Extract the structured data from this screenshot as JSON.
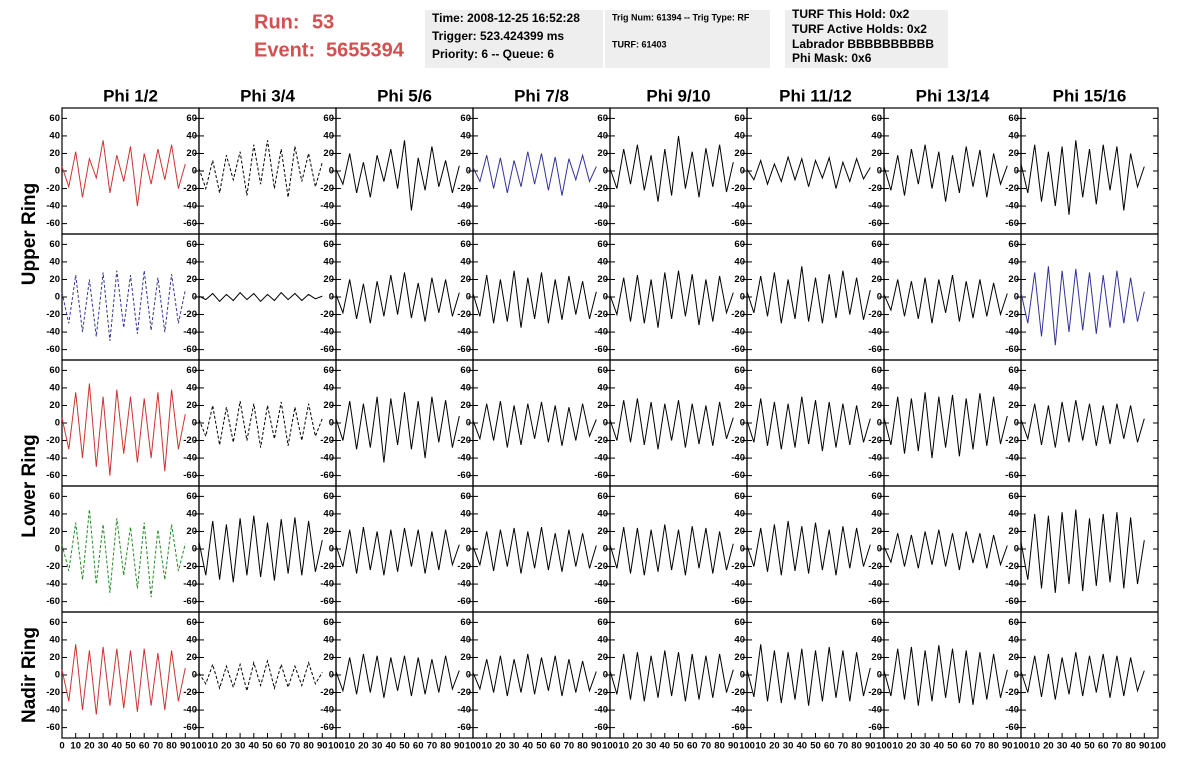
{
  "header": {
    "run_label": "Run:",
    "run": 53,
    "event_label": "Event:",
    "event": 5655394,
    "info1": [
      "Time: 2008-12-25 16:52:28",
      "Trigger: 523.424399 ms",
      "Priority: 6 -- Queue: 6"
    ],
    "info2": [
      "Trig Num: 61394 -- Trig Type: RF",
      "TURF: 61403"
    ],
    "info3": [
      "TURF This Hold: 0x2",
      "TURF Active Holds: 0x2",
      "Labrador BBBBBBBBBB",
      "Phi Mask: 0x6"
    ]
  },
  "columns": [
    "Phi 1/2",
    "Phi 3/4",
    "Phi 5/6",
    "Phi 7/8",
    "Phi 9/10",
    "Phi 11/12",
    "Phi 13/14",
    "Phi 15/16"
  ],
  "rows": [
    "Upper Ring",
    "Lower Ring",
    "Nadir Ring"
  ],
  "axes": {
    "xlim": [
      0,
      100
    ],
    "xticks": [
      0,
      10,
      20,
      30,
      40,
      50,
      60,
      70,
      80,
      90,
      100
    ],
    "ylim": [
      -65,
      65
    ],
    "yticks": [
      60,
      40,
      20,
      0,
      -20,
      -40,
      -60
    ]
  },
  "x": [
    0,
    5,
    10,
    15,
    20,
    25,
    30,
    35,
    40,
    45,
    50,
    55,
    60,
    65,
    70,
    75,
    80,
    85,
    90
  ],
  "panels": [
    [
      {
        "color": "#cc3333",
        "dashed": false,
        "values": [
          5,
          -18,
          22,
          -30,
          14,
          -8,
          35,
          -25,
          18,
          -12,
          28,
          -40,
          20,
          -15,
          25,
          -10,
          30,
          -20,
          8
        ]
      },
      {
        "color": "#000000",
        "dashed": true,
        "values": [
          3,
          -20,
          12,
          -25,
          18,
          -10,
          22,
          -28,
          30,
          -15,
          35,
          -20,
          25,
          -30,
          28,
          -12,
          20,
          -18,
          10
        ]
      },
      {
        "color": "#000000",
        "dashed": false,
        "values": [
          2,
          -15,
          20,
          -25,
          10,
          -30,
          18,
          -12,
          25,
          -20,
          35,
          -45,
          15,
          -22,
          28,
          -18,
          12,
          -25,
          6
        ]
      },
      {
        "color": "#333399",
        "dashed": false,
        "values": [
          4,
          -12,
          18,
          -20,
          15,
          -25,
          12,
          -18,
          22,
          -15,
          20,
          -22,
          16,
          -28,
          14,
          -10,
          18,
          -12,
          5
        ]
      },
      {
        "color": "#000000",
        "dashed": false,
        "values": [
          3,
          -20,
          25,
          -15,
          30,
          -22,
          18,
          -35,
          25,
          -28,
          40,
          -20,
          22,
          -30,
          26,
          -18,
          30,
          -24,
          10
        ]
      },
      {
        "color": "#000000",
        "dashed": false,
        "values": [
          2,
          -10,
          12,
          -15,
          8,
          -12,
          16,
          -10,
          14,
          -18,
          12,
          -8,
          15,
          -20,
          10,
          -12,
          14,
          -9,
          4
        ]
      },
      {
        "color": "#000000",
        "dashed": false,
        "values": [
          5,
          -22,
          18,
          -28,
          25,
          -15,
          30,
          -20,
          22,
          -35,
          18,
          -25,
          28,
          -18,
          24,
          -30,
          20,
          -15,
          6
        ]
      },
      {
        "color": "#000000",
        "dashed": false,
        "values": [
          8,
          -25,
          30,
          -35,
          22,
          -40,
          28,
          -50,
          35,
          -30,
          25,
          -38,
          30,
          -22,
          28,
          -45,
          20,
          -18,
          5
        ]
      }
    ],
    [
      {
        "color": "#333399",
        "dashed": true,
        "values": [
          5,
          -30,
          25,
          -40,
          20,
          -45,
          28,
          -50,
          30,
          -35,
          25,
          -42,
          30,
          -38,
          22,
          -40,
          26,
          -30,
          8
        ]
      },
      {
        "color": "#000000",
        "dashed": false,
        "values": [
          1,
          -3,
          4,
          -5,
          3,
          -4,
          5,
          -3,
          4,
          -5,
          3,
          -4,
          5,
          -3,
          4,
          -4,
          3,
          -2,
          1
        ]
      },
      {
        "color": "#000000",
        "dashed": false,
        "values": [
          3,
          -18,
          20,
          -25,
          15,
          -30,
          18,
          -22,
          25,
          -20,
          28,
          -24,
          16,
          -28,
          22,
          -18,
          20,
          -22,
          5
        ]
      },
      {
        "color": "#000000",
        "dashed": false,
        "values": [
          4,
          -22,
          25,
          -30,
          20,
          -28,
          30,
          -35,
          22,
          -25,
          28,
          -30,
          20,
          -26,
          24,
          -20,
          18,
          -25,
          6
        ]
      },
      {
        "color": "#000000",
        "dashed": false,
        "values": [
          2,
          -20,
          22,
          -28,
          25,
          -30,
          20,
          -35,
          28,
          -25,
          30,
          -22,
          26,
          -32,
          20,
          -28,
          24,
          -18,
          5
        ]
      },
      {
        "color": "#000000",
        "dashed": false,
        "values": [
          6,
          -18,
          24,
          -22,
          28,
          -30,
          20,
          -25,
          35,
          -28,
          22,
          -30,
          26,
          -24,
          30,
          -20,
          22,
          -26,
          8
        ]
      },
      {
        "color": "#000000",
        "dashed": false,
        "values": [
          3,
          -15,
          20,
          -22,
          18,
          -25,
          22,
          -30,
          20,
          -18,
          25,
          -28,
          18,
          -24,
          20,
          -22,
          16,
          -20,
          4
        ]
      },
      {
        "color": "#333399",
        "dashed": false,
        "values": [
          5,
          -30,
          28,
          -45,
          35,
          -55,
          30,
          -40,
          32,
          -38,
          28,
          -42,
          25,
          -35,
          30,
          -30,
          22,
          -28,
          6
        ]
      }
    ],
    [
      {
        "color": "#cc3333",
        "dashed": false,
        "values": [
          6,
          -30,
          35,
          -40,
          45,
          -50,
          30,
          -60,
          38,
          -35,
          30,
          -45,
          28,
          -40,
          35,
          -55,
          38,
          -30,
          10
        ]
      },
      {
        "color": "#000000",
        "dashed": true,
        "values": [
          4,
          -15,
          20,
          -25,
          18,
          -22,
          25,
          -20,
          22,
          -28,
          20,
          -18,
          24,
          -26,
          18,
          -20,
          22,
          -15,
          5
        ]
      },
      {
        "color": "#000000",
        "dashed": false,
        "values": [
          5,
          -20,
          25,
          -30,
          22,
          -28,
          30,
          -45,
          28,
          -25,
          35,
          -30,
          25,
          -40,
          30,
          -22,
          26,
          -28,
          8
        ]
      },
      {
        "color": "#000000",
        "dashed": false,
        "values": [
          3,
          -18,
          22,
          -20,
          25,
          -28,
          20,
          -25,
          22,
          -18,
          24,
          -22,
          20,
          -26,
          18,
          -20,
          22,
          -15,
          4
        ]
      },
      {
        "color": "#000000",
        "dashed": false,
        "values": [
          4,
          -20,
          26,
          -22,
          28,
          -25,
          24,
          -30,
          22,
          -20,
          26,
          -28,
          22,
          -24,
          20,
          -26,
          24,
          -18,
          6
        ]
      },
      {
        "color": "#000000",
        "dashed": false,
        "values": [
          3,
          -22,
          28,
          -26,
          24,
          -30,
          22,
          -28,
          30,
          -24,
          26,
          -32,
          24,
          -28,
          22,
          -25,
          20,
          -22,
          5
        ]
      },
      {
        "color": "#000000",
        "dashed": false,
        "values": [
          6,
          -25,
          30,
          -35,
          28,
          -32,
          35,
          -40,
          30,
          -28,
          32,
          -38,
          28,
          -30,
          34,
          -26,
          30,
          -24,
          8
        ]
      },
      {
        "color": "#000000",
        "dashed": false,
        "values": [
          4,
          -18,
          22,
          -25,
          20,
          -28,
          24,
          -22,
          26,
          -20,
          22,
          -26,
          20,
          -24,
          22,
          -18,
          20,
          -22,
          5
        ]
      }
    ],
    [
      {
        "color": "#228822",
        "dashed": true,
        "values": [
          5,
          -25,
          30,
          -35,
          45,
          -40,
          28,
          -50,
          35,
          -30,
          25,
          -45,
          30,
          -55,
          22,
          -35,
          28,
          -25,
          6
        ]
      },
      {
        "color": "#000000",
        "dashed": false,
        "values": [
          8,
          -30,
          32,
          -35,
          28,
          -38,
          35,
          -30,
          38,
          -32,
          30,
          -36,
          34,
          -28,
          36,
          -30,
          32,
          -26,
          10
        ]
      },
      {
        "color": "#000000",
        "dashed": false,
        "values": [
          4,
          -20,
          22,
          -28,
          25,
          -24,
          20,
          -30,
          22,
          -26,
          24,
          -20,
          22,
          -28,
          20,
          -24,
          22,
          -18,
          5
        ]
      },
      {
        "color": "#000000",
        "dashed": false,
        "values": [
          3,
          -18,
          20,
          -25,
          22,
          -20,
          24,
          -28,
          20,
          -22,
          25,
          -24,
          18,
          -26,
          22,
          -20,
          18,
          -22,
          4
        ]
      },
      {
        "color": "#000000",
        "dashed": false,
        "values": [
          5,
          -22,
          25,
          -28,
          24,
          -30,
          22,
          -26,
          28,
          -24,
          22,
          -30,
          26,
          -22,
          24,
          -28,
          20,
          -24,
          6
        ]
      },
      {
        "color": "#000000",
        "dashed": false,
        "values": [
          4,
          -20,
          24,
          -26,
          28,
          -30,
          32,
          -25,
          26,
          -28,
          30,
          -24,
          22,
          -30,
          26,
          -22,
          24,
          -20,
          5
        ]
      },
      {
        "color": "#000000",
        "dashed": false,
        "values": [
          3,
          -15,
          18,
          -20,
          16,
          -22,
          20,
          -18,
          22,
          -20,
          18,
          -24,
          20,
          -16,
          18,
          -22,
          16,
          -18,
          4
        ]
      },
      {
        "color": "#000000",
        "dashed": false,
        "values": [
          8,
          -35,
          40,
          -45,
          38,
          -50,
          42,
          -40,
          45,
          -48,
          35,
          -42,
          40,
          -38,
          42,
          -45,
          36,
          -40,
          10
        ]
      }
    ],
    [
      {
        "color": "#cc3333",
        "dashed": false,
        "values": [
          6,
          -30,
          35,
          -40,
          28,
          -45,
          32,
          -35,
          30,
          -38,
          28,
          -42,
          30,
          -35,
          25,
          -40,
          28,
          -30,
          8
        ]
      },
      {
        "color": "#000000",
        "dashed": true,
        "values": [
          2,
          -10,
          12,
          -15,
          10,
          -14,
          12,
          -18,
          14,
          -12,
          16,
          -15,
          12,
          -14,
          10,
          -12,
          14,
          -10,
          3
        ]
      },
      {
        "color": "#000000",
        "dashed": false,
        "values": [
          4,
          -18,
          20,
          -22,
          24,
          -20,
          22,
          -26,
          20,
          -18,
          22,
          -24,
          20,
          -22,
          18,
          -20,
          22,
          -16,
          5
        ]
      },
      {
        "color": "#000000",
        "dashed": false,
        "values": [
          3,
          -16,
          18,
          -20,
          22,
          -24,
          18,
          -20,
          24,
          -22,
          20,
          -18,
          22,
          -24,
          18,
          -20,
          16,
          -18,
          4
        ]
      },
      {
        "color": "#000000",
        "dashed": false,
        "values": [
          5,
          -22,
          24,
          -28,
          26,
          -30,
          22,
          -26,
          28,
          -24,
          26,
          -30,
          24,
          -28,
          22,
          -26,
          24,
          -20,
          6
        ]
      },
      {
        "color": "#000000",
        "dashed": false,
        "values": [
          6,
          -25,
          35,
          -30,
          28,
          -32,
          26,
          -28,
          30,
          -35,
          28,
          -30,
          32,
          -26,
          28,
          -30,
          26,
          -24,
          8
        ]
      },
      {
        "color": "#000000",
        "dashed": false,
        "values": [
          5,
          -24,
          30,
          -28,
          32,
          -35,
          28,
          -30,
          34,
          -26,
          30,
          -32,
          28,
          -34,
          26,
          -28,
          24,
          -26,
          6
        ]
      },
      {
        "color": "#000000",
        "dashed": false,
        "values": [
          4,
          -20,
          22,
          -25,
          24,
          -28,
          20,
          -22,
          26,
          -24,
          22,
          -20,
          24,
          -26,
          22,
          -24,
          20,
          -18,
          5
        ]
      }
    ]
  ]
}
